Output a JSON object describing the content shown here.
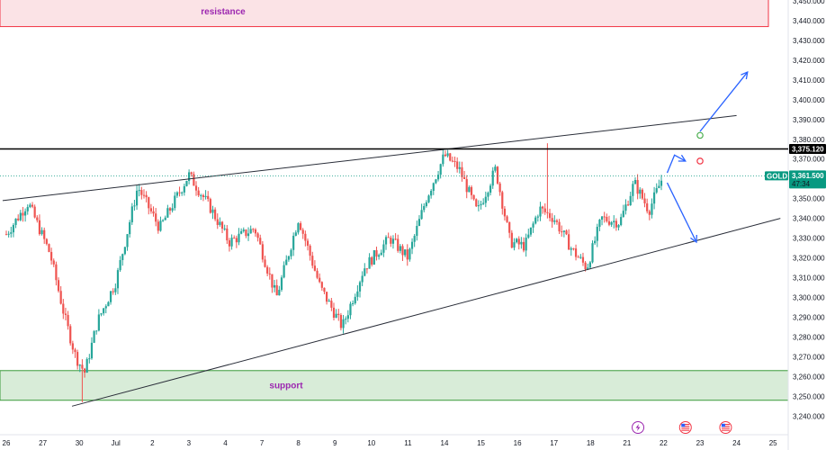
{
  "chart_data": {
    "type": "candlestick",
    "symbol": "GOLD",
    "y_ticks": [
      3240,
      3250,
      3260,
      3270,
      3280,
      3290,
      3300,
      3310,
      3320,
      3330,
      3340,
      3350,
      3360,
      3370,
      3380,
      3390,
      3400,
      3410,
      3420,
      3430,
      3440,
      3450
    ],
    "ylim": [
      3236,
      3452
    ],
    "x_ticks": [
      {
        "label": "26",
        "date": "2025-06-26"
      },
      {
        "label": "27",
        "date": "2025-06-27"
      },
      {
        "label": "30",
        "date": "2025-06-30"
      },
      {
        "label": "Jul",
        "date": "2025-07-01"
      },
      {
        "label": "2",
        "date": "2025-07-02"
      },
      {
        "label": "3",
        "date": "2025-07-03"
      },
      {
        "label": "4",
        "date": "2025-07-04"
      },
      {
        "label": "7",
        "date": "2025-07-07"
      },
      {
        "label": "8",
        "date": "2025-07-08"
      },
      {
        "label": "9",
        "date": "2025-07-09"
      },
      {
        "label": "10",
        "date": "2025-07-10"
      },
      {
        "label": "11",
        "date": "2025-07-11"
      },
      {
        "label": "14",
        "date": "2025-07-14"
      },
      {
        "label": "15",
        "date": "2025-07-15"
      },
      {
        "label": "16",
        "date": "2025-07-16"
      },
      {
        "label": "17",
        "date": "2025-07-17"
      },
      {
        "label": "18",
        "date": "2025-07-18"
      },
      {
        "label": "21",
        "date": "2025-07-21"
      },
      {
        "label": "22",
        "date": "2025-07-22"
      },
      {
        "label": "23",
        "date": "2025-07-23"
      },
      {
        "label": "24",
        "date": "2025-07-24"
      },
      {
        "label": "25",
        "date": "2025-07-25"
      }
    ],
    "price_path": [
      {
        "d": 0.0,
        "p": 3332
      },
      {
        "d": 0.6,
        "p": 3348
      },
      {
        "d": 1.2,
        "p": 3322
      },
      {
        "d": 1.6,
        "p": 3290
      },
      {
        "d": 1.9,
        "p": 3270
      },
      {
        "d": 2.15,
        "p": 3262
      },
      {
        "d": 2.5,
        "p": 3288
      },
      {
        "d": 3.0,
        "p": 3308
      },
      {
        "d": 3.6,
        "p": 3356
      },
      {
        "d": 4.2,
        "p": 3335
      },
      {
        "d": 5.0,
        "p": 3362
      },
      {
        "d": 5.6,
        "p": 3345
      },
      {
        "d": 6.1,
        "p": 3328
      },
      {
        "d": 6.8,
        "p": 3335
      },
      {
        "d": 7.4,
        "p": 3300
      },
      {
        "d": 8.0,
        "p": 3340
      },
      {
        "d": 8.6,
        "p": 3305
      },
      {
        "d": 9.2,
        "p": 3285
      },
      {
        "d": 9.8,
        "p": 3315
      },
      {
        "d": 10.5,
        "p": 3330
      },
      {
        "d": 11.0,
        "p": 3320
      },
      {
        "d": 11.5,
        "p": 3350
      },
      {
        "d": 12.0,
        "p": 3372
      },
      {
        "d": 12.4,
        "p": 3365
      },
      {
        "d": 12.9,
        "p": 3343
      },
      {
        "d": 13.4,
        "p": 3365
      },
      {
        "d": 13.8,
        "p": 3328
      },
      {
        "d": 14.2,
        "p": 3326
      },
      {
        "d": 14.6,
        "p": 3345
      },
      {
        "d": 15.0,
        "p": 3340
      },
      {
        "d": 15.5,
        "p": 3324
      },
      {
        "d": 15.9,
        "p": 3315
      },
      {
        "d": 16.3,
        "p": 3340
      },
      {
        "d": 16.8,
        "p": 3338
      },
      {
        "d": 17.2,
        "p": 3358
      },
      {
        "d": 17.6,
        "p": 3344
      },
      {
        "d": 18.0,
        "p": 3362
      }
    ],
    "spikes": [
      {
        "d": 14.8,
        "high": 3378
      },
      {
        "d": 2.05,
        "low": 3247
      }
    ],
    "resistance": {
      "label": "resistance",
      "low": 3437,
      "high": 3452
    },
    "support": {
      "label": "support",
      "low": 3248,
      "high": 3263
    },
    "trendlines": [
      {
        "from": {
          "d": -0.1,
          "p": 3349
        },
        "to": {
          "d": 20.0,
          "p": 3392
        }
      },
      {
        "from": {
          "d": 1.8,
          "p": 3245
        },
        "to": {
          "d": 21.2,
          "p": 3340
        }
      }
    ],
    "horizontal_line": {
      "price": 3375.12,
      "label": "3,375.120"
    },
    "last_price": {
      "symbol": "GOLD",
      "price": 3361.5,
      "price_label": "3,361.500",
      "countdown": "47:34"
    },
    "projection_arrows": [
      {
        "direction": "up",
        "points": [
          {
            "d": 18.1,
            "p": 3363
          },
          {
            "d": 18.3,
            "p": 3372
          },
          {
            "d": 18.6,
            "p": 3369
          }
        ]
      },
      {
        "direction": "down",
        "points": [
          {
            "d": 18.1,
            "p": 3358
          },
          {
            "d": 18.9,
            "p": 3328
          }
        ]
      },
      {
        "direction": "up",
        "points": [
          {
            "d": 19.0,
            "p": 3384
          },
          {
            "d": 20.3,
            "p": 3414
          }
        ]
      }
    ],
    "markers": [
      {
        "type": "circle",
        "color": "#4caf50",
        "d": 19.0,
        "p": 3382
      },
      {
        "type": "circle",
        "color": "#f23645",
        "d": 19.0,
        "p": 3369
      }
    ],
    "event_icons": [
      {
        "icon": "lightning-icon",
        "d": 17.3
      },
      {
        "icon": "us-flag-icon",
        "d": 18.6
      },
      {
        "icon": "us-flag-icon",
        "d": 19.7
      }
    ],
    "colors": {
      "up": "#26a69a",
      "down": "#ef5350",
      "resistance_fill": "#fbe3e6",
      "resistance_border": "#f23645",
      "resistance_text": "#9c27b0",
      "support_fill": "#d8ecd8",
      "support_border": "#3a9a3a",
      "support_text": "#9c27b0",
      "trendline": "#2a2e39",
      "hline": "#000000",
      "last_price": "#089981",
      "arrow": "#2962ff"
    }
  }
}
